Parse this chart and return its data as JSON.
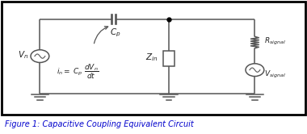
{
  "title": "Figure 1: Capacitive Coupling Equivalent Circuit",
  "title_color": "#0000cc",
  "title_fontsize": 7.0,
  "bg_color": "#ffffff",
  "line_color": "#555555",
  "text_color": "#222222",
  "fig_width": 3.8,
  "fig_height": 1.66,
  "dpi": 100
}
